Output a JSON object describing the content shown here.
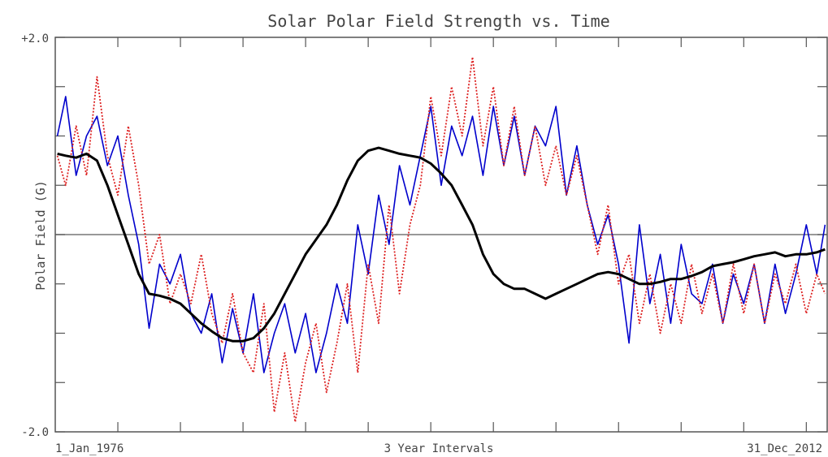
{
  "chart_data": {
    "type": "line",
    "title": "Solar Polar Field Strength vs. Time",
    "xlabel": "3 Year Intervals",
    "ylabel": "Polar Field (G)",
    "x_start_label": "1_Jan_1976",
    "x_end_label": "31_Dec_2012",
    "y_max_label": "+2.0",
    "y_min_label": "-2.0",
    "ylim": [
      -2.0,
      2.0
    ],
    "xlim": [
      1976.0,
      2013.0
    ],
    "grid": false,
    "zero_line": true,
    "series": [
      {
        "color": "#0000cc",
        "style": "solid",
        "x": [
          1976.1,
          1976.5,
          1977.0,
          1977.5,
          1978.0,
          1978.5,
          1979.0,
          1979.5,
          1980.0,
          1980.5,
          1981.0,
          1981.5,
          1982.0,
          1982.5,
          1983.0,
          1983.5,
          1984.0,
          1984.5,
          1985.0,
          1985.5,
          1986.0,
          1986.5,
          1987.0,
          1987.5,
          1988.0,
          1988.5,
          1989.0,
          1989.5,
          1990.0,
          1990.5,
          1991.0,
          1991.5,
          1992.0,
          1992.5,
          1993.0,
          1993.5,
          1994.0,
          1994.5,
          1995.0,
          1995.5,
          1996.0,
          1996.5,
          1997.0,
          1997.5,
          1998.0,
          1998.5,
          1999.0,
          1999.5,
          2000.0,
          2000.5,
          2001.0,
          2001.5,
          2002.0,
          2002.5,
          2003.0,
          2003.5,
          2004.0,
          2004.5,
          2005.0,
          2005.5,
          2006.0,
          2006.5,
          2007.0,
          2007.5,
          2008.0,
          2008.5,
          2009.0,
          2009.5,
          2010.0,
          2010.5,
          2011.0,
          2011.5,
          2012.0,
          2012.5,
          2012.9
        ],
        "values": [
          1.0,
          1.4,
          0.6,
          1.0,
          1.2,
          0.7,
          1.0,
          0.4,
          -0.1,
          -0.95,
          -0.3,
          -0.5,
          -0.2,
          -0.8,
          -1.0,
          -0.6,
          -1.3,
          -0.75,
          -1.2,
          -0.6,
          -1.4,
          -1.0,
          -0.7,
          -1.2,
          -0.8,
          -1.4,
          -1.0,
          -0.5,
          -0.9,
          0.1,
          -0.4,
          0.4,
          -0.1,
          0.7,
          0.3,
          0.8,
          1.3,
          0.5,
          1.1,
          0.8,
          1.2,
          0.6,
          1.3,
          0.7,
          1.2,
          0.6,
          1.1,
          0.9,
          1.3,
          0.4,
          0.9,
          0.3,
          -0.1,
          0.2,
          -0.3,
          -1.1,
          0.1,
          -0.7,
          -0.2,
          -0.9,
          -0.1,
          -0.6,
          -0.7,
          -0.3,
          -0.9,
          -0.4,
          -0.7,
          -0.3,
          -0.9,
          -0.3,
          -0.8,
          -0.4,
          0.1,
          -0.4,
          0.1
        ]
      },
      {
        "color": "#dd2222",
        "style": "dotted",
        "x": [
          1976.1,
          1976.5,
          1977.0,
          1977.5,
          1978.0,
          1978.5,
          1979.0,
          1979.5,
          1980.0,
          1980.5,
          1981.0,
          1981.5,
          1982.0,
          1982.5,
          1983.0,
          1983.5,
          1984.0,
          1984.5,
          1985.0,
          1985.5,
          1986.0,
          1986.5,
          1987.0,
          1987.5,
          1988.0,
          1988.5,
          1989.0,
          1989.5,
          1990.0,
          1990.5,
          1991.0,
          1991.5,
          1992.0,
          1992.5,
          1993.0,
          1993.5,
          1994.0,
          1994.5,
          1995.0,
          1995.5,
          1996.0,
          1996.5,
          1997.0,
          1997.5,
          1998.0,
          1998.5,
          1999.0,
          1999.5,
          2000.0,
          2000.5,
          2001.0,
          2001.5,
          2002.0,
          2002.5,
          2003.0,
          2003.5,
          2004.0,
          2004.5,
          2005.0,
          2005.5,
          2006.0,
          2006.5,
          2007.0,
          2007.5,
          2008.0,
          2008.5,
          2009.0,
          2009.5,
          2010.0,
          2010.5,
          2011.0,
          2011.5,
          2012.0,
          2012.5,
          2012.9
        ],
        "values": [
          0.8,
          0.5,
          1.1,
          0.6,
          1.6,
          0.8,
          0.4,
          1.1,
          0.5,
          -0.3,
          0.0,
          -0.7,
          -0.4,
          -0.7,
          -0.2,
          -0.8,
          -1.1,
          -0.6,
          -1.2,
          -1.4,
          -0.7,
          -1.8,
          -1.2,
          -1.9,
          -1.3,
          -0.9,
          -1.6,
          -1.1,
          -0.5,
          -1.4,
          -0.3,
          -0.9,
          0.3,
          -0.6,
          0.1,
          0.5,
          1.4,
          0.8,
          1.5,
          1.0,
          1.8,
          0.9,
          1.5,
          0.7,
          1.3,
          0.6,
          1.1,
          0.5,
          0.9,
          0.4,
          0.8,
          0.3,
          -0.2,
          0.3,
          -0.5,
          -0.2,
          -0.9,
          -0.4,
          -1.0,
          -0.5,
          -0.9,
          -0.3,
          -0.8,
          -0.4,
          -0.9,
          -0.3,
          -0.8,
          -0.3,
          -0.9,
          -0.4,
          -0.7,
          -0.3,
          -0.8,
          -0.4,
          -0.6
        ]
      },
      {
        "color": "#000000",
        "style": "solid-thick",
        "x": [
          1976.1,
          1976.5,
          1977.0,
          1977.5,
          1978.0,
          1978.5,
          1979.0,
          1979.5,
          1980.0,
          1980.5,
          1981.0,
          1981.5,
          1982.0,
          1982.5,
          1983.0,
          1983.5,
          1984.0,
          1984.5,
          1985.0,
          1985.5,
          1986.0,
          1986.5,
          1987.0,
          1987.5,
          1988.0,
          1988.5,
          1989.0,
          1989.5,
          1990.0,
          1990.5,
          1991.0,
          1991.5,
          1992.0,
          1992.5,
          1993.0,
          1993.5,
          1994.0,
          1994.5,
          1995.0,
          1995.5,
          1996.0,
          1996.5,
          1997.0,
          1997.5,
          1998.0,
          1998.5,
          1999.0,
          1999.5,
          2000.0,
          2000.5,
          2001.0,
          2001.5,
          2002.0,
          2002.5,
          2003.0,
          2003.5,
          2004.0,
          2004.5,
          2005.0,
          2005.5,
          2006.0,
          2006.5,
          2007.0,
          2007.5,
          2008.0,
          2008.5,
          2009.0,
          2009.5,
          2010.0,
          2010.5,
          2011.0,
          2011.5,
          2012.0,
          2012.5,
          2012.9
        ],
        "values": [
          0.82,
          0.8,
          0.78,
          0.82,
          0.75,
          0.5,
          0.2,
          -0.1,
          -0.4,
          -0.6,
          -0.62,
          -0.65,
          -0.7,
          -0.8,
          -0.9,
          -0.98,
          -1.05,
          -1.08,
          -1.08,
          -1.05,
          -0.95,
          -0.8,
          -0.6,
          -0.4,
          -0.2,
          -0.05,
          0.1,
          0.3,
          0.55,
          0.75,
          0.85,
          0.88,
          0.85,
          0.82,
          0.8,
          0.78,
          0.72,
          0.62,
          0.5,
          0.3,
          0.1,
          -0.2,
          -0.4,
          -0.5,
          -0.55,
          -0.55,
          -0.6,
          -0.65,
          -0.6,
          -0.55,
          -0.5,
          -0.45,
          -0.4,
          -0.38,
          -0.4,
          -0.45,
          -0.5,
          -0.5,
          -0.48,
          -0.45,
          -0.45,
          -0.42,
          -0.38,
          -0.32,
          -0.3,
          -0.28,
          -0.25,
          -0.22,
          -0.2,
          -0.18,
          -0.22,
          -0.2,
          -0.2,
          -0.18,
          -0.15
        ]
      }
    ]
  }
}
